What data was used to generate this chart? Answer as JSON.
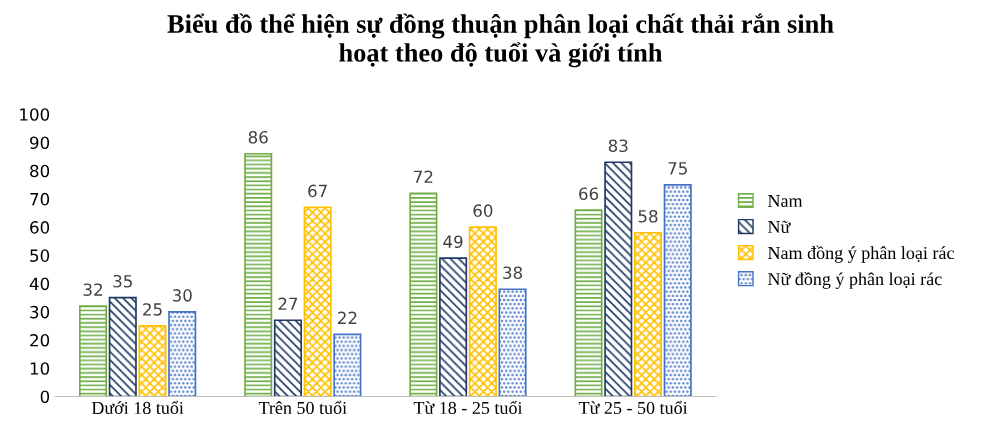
{
  "chart_data": {
    "type": "bar",
    "title": "Biểu đồ thể hiện sự đồng thuận phân loại chất thải rắn sinh\nhoạt theo độ tuổi và giới tính",
    "categories": [
      "Dưới 18 tuổi",
      "Trên 50 tuổi",
      "Từ 18 - 25 tuổi",
      "Từ 25 - 50 tuổi"
    ],
    "series": [
      {
        "name": "Nam",
        "color": "#70ad47",
        "values": [
          32,
          86,
          72,
          66
        ]
      },
      {
        "name": "Nữ",
        "color": "#203864",
        "values": [
          35,
          27,
          49,
          83
        ]
      },
      {
        "name": "Nam đồng ý phân loại rác",
        "color": "#ffc000",
        "values": [
          25,
          67,
          60,
          58
        ]
      },
      {
        "name": "Nữ đồng ý phân loại rác",
        "color": "#4472c4",
        "values": [
          30,
          22,
          38,
          75
        ]
      }
    ],
    "ylim": [
      0,
      100
    ],
    "yticks": [
      0,
      10,
      20,
      30,
      40,
      50,
      60,
      70,
      80,
      90,
      100
    ],
    "data_labels": true,
    "legend": "right",
    "grid": false
  }
}
